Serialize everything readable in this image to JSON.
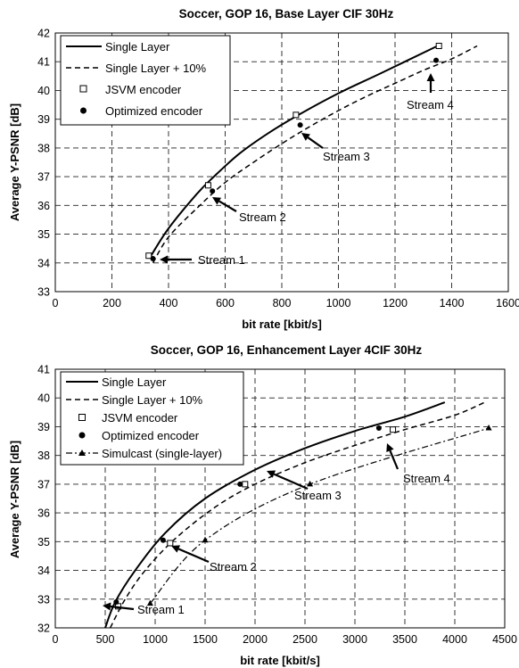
{
  "chart_data": [
    {
      "type": "line",
      "title": "Soccer, GOP 16, Base Layer CIF 30Hz",
      "xlabel": "bit rate [kbit/s]",
      "ylabel": "Average Y-PSNR [dB]",
      "xlim": [
        0,
        1600
      ],
      "ylim": [
        33,
        42
      ],
      "x_ticks": [
        0,
        200,
        400,
        600,
        800,
        1000,
        1200,
        1400,
        1600
      ],
      "y_ticks": [
        33,
        34,
        35,
        36,
        37,
        38,
        39,
        40,
        41,
        42
      ],
      "grid": true,
      "legend_position": "top-left",
      "series": [
        {
          "name": "Single Layer",
          "style": "solid",
          "marker": "none",
          "x": [
            335,
            400,
            500,
            560,
            650,
            750,
            850,
            1000,
            1150,
            1350
          ],
          "y": [
            34.2,
            35.2,
            36.4,
            37.0,
            37.8,
            38.5,
            39.1,
            39.9,
            40.6,
            41.55
          ]
        },
        {
          "name": "Single Layer + 10%",
          "style": "dashed",
          "marker": "none",
          "x": [
            345,
            400,
            500,
            600,
            700,
            800,
            900,
            1000,
            1100,
            1200,
            1300,
            1400,
            1490
          ],
          "y": [
            34.0,
            34.9,
            35.9,
            36.8,
            37.5,
            38.15,
            38.75,
            39.3,
            39.8,
            40.25,
            40.7,
            41.1,
            41.55
          ]
        },
        {
          "name": "JSVM encoder",
          "style": "none",
          "marker": "open-square",
          "x": [
            330,
            540,
            850,
            1355
          ],
          "y": [
            34.25,
            36.7,
            39.15,
            41.55
          ]
        },
        {
          "name": "Optimized encoder",
          "style": "none",
          "marker": "filled-circle",
          "x": [
            345,
            555,
            865,
            1345
          ],
          "y": [
            34.15,
            36.5,
            38.8,
            41.05
          ]
        }
      ],
      "annotations": [
        {
          "text": "Stream 1",
          "x": 385,
          "y": 34.15
        },
        {
          "text": "Stream 2",
          "x": 570,
          "y": 36.3
        },
        {
          "text": "Stream 3",
          "x": 890,
          "y": 38.6
        },
        {
          "text": "Stream 4",
          "x": 1345,
          "y": 40.75
        }
      ],
      "legend_labels": [
        "Single Layer",
        "Single Layer + 10%",
        "JSVM encoder",
        "Optimized encoder"
      ]
    },
    {
      "type": "line",
      "title": "Soccer, GOP 16, Enhancement Layer 4CIF 30Hz",
      "xlabel": "bit rate [kbit/s]",
      "ylabel": "Average Y-PSNR [dB]",
      "xlim": [
        0,
        4500
      ],
      "ylim": [
        32,
        41
      ],
      "x_ticks": [
        0,
        500,
        1000,
        1500,
        2000,
        2500,
        3000,
        3500,
        4000,
        4500
      ],
      "y_ticks": [
        32,
        33,
        34,
        35,
        36,
        37,
        38,
        39,
        40,
        41
      ],
      "grid": true,
      "legend_position": "top-left",
      "series": [
        {
          "name": "Single Layer",
          "style": "solid",
          "marker": "none",
          "x": [
            500,
            600,
            800,
            1100,
            1500,
            2000,
            2500,
            3000,
            3500,
            3900
          ],
          "y": [
            32.0,
            32.9,
            34.0,
            35.3,
            36.5,
            37.5,
            38.25,
            38.85,
            39.35,
            39.85
          ]
        },
        {
          "name": "Single Layer + 10%",
          "style": "dashed",
          "marker": "none",
          "x": [
            550,
            700,
            900,
            1200,
            1600,
            2000,
            2500,
            3000,
            3500,
            4000,
            4300
          ],
          "y": [
            32.0,
            33.0,
            34.0,
            35.1,
            36.2,
            37.0,
            37.75,
            38.35,
            38.9,
            39.4,
            39.85
          ]
        },
        {
          "name": "JSVM encoder",
          "style": "none",
          "marker": "open-square",
          "x": [
            630,
            1150,
            1900,
            3380
          ],
          "y": [
            32.75,
            34.95,
            37.0,
            38.9
          ]
        },
        {
          "name": "Optimized encoder",
          "style": "none",
          "marker": "filled-circle",
          "x": [
            610,
            1080,
            1850,
            3240
          ],
          "y": [
            32.9,
            35.05,
            37.0,
            38.95
          ]
        },
        {
          "name": "Simulcast (single-layer)",
          "style": "dashdot",
          "marker": "filled-triangle",
          "x": [
            950,
            1500,
            2550,
            4340
          ],
          "y": [
            32.85,
            35.05,
            37.0,
            38.95
          ]
        }
      ],
      "annotations": [
        {
          "text": "Stream 1",
          "x": 680,
          "y": 32.7
        },
        {
          "text": "Stream 2",
          "x": 1230,
          "y": 34.75
        },
        {
          "text": "Stream 3",
          "x": 1960,
          "y": 36.75
        },
        {
          "text": "Stream 4",
          "x": 3330,
          "y": 38.6
        }
      ],
      "legend_labels": [
        "Single Layer",
        "Single Layer + 10%",
        "JSVM encoder",
        "Optimized encoder",
        "Simulcast (single-layer)"
      ]
    }
  ]
}
